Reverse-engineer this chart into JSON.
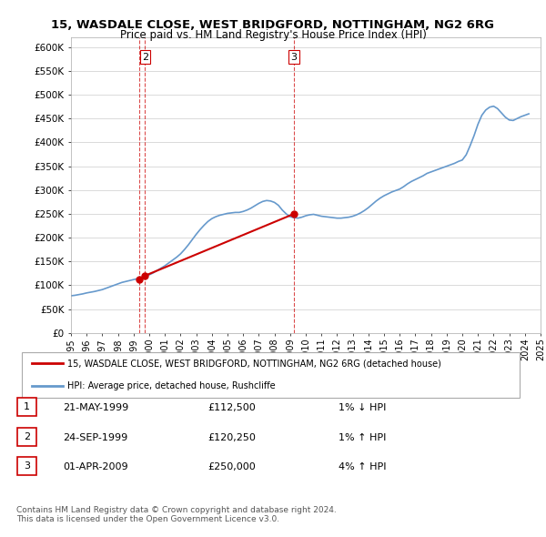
{
  "title1": "15, WASDALE CLOSE, WEST BRIDGFORD, NOTTINGHAM, NG2 6RG",
  "title2": "Price paid vs. HM Land Registry's House Price Index (HPI)",
  "ylabel_ticks": [
    "£0",
    "£50K",
    "£100K",
    "£150K",
    "£200K",
    "£250K",
    "£300K",
    "£350K",
    "£400K",
    "£450K",
    "£500K",
    "£550K",
    "£600K"
  ],
  "ytick_values": [
    0,
    50000,
    100000,
    150000,
    200000,
    250000,
    300000,
    350000,
    400000,
    450000,
    500000,
    550000,
    600000
  ],
  "ylim": [
    0,
    620000
  ],
  "legend_line1": "15, WASDALE CLOSE, WEST BRIDGFORD, NOTTINGHAM, NG2 6RG (detached house)",
  "legend_line2": "HPI: Average price, detached house, Rushcliffe",
  "transaction_labels": [
    {
      "num": "1",
      "date": "21-MAY-1999",
      "price": "£112,500",
      "hpi": "1% ↓ HPI"
    },
    {
      "num": "2",
      "date": "24-SEP-1999",
      "price": "£120,250",
      "hpi": "1% ↑ HPI"
    },
    {
      "num": "3",
      "date": "01-APR-2009",
      "price": "£250,000",
      "hpi": "4% ↑ HPI"
    }
  ],
  "footer": "Contains HM Land Registry data © Crown copyright and database right 2024.\nThis data is licensed under the Open Government Licence v3.0.",
  "sale_color": "#cc0000",
  "hpi_color": "#6699cc",
  "vline_color": "#cc0000",
  "bg_color": "#ffffff",
  "hpi_dates": [
    1995.0,
    1995.25,
    1995.5,
    1995.75,
    1996.0,
    1996.25,
    1996.5,
    1996.75,
    1997.0,
    1997.25,
    1997.5,
    1997.75,
    1998.0,
    1998.25,
    1998.5,
    1998.75,
    1999.0,
    1999.25,
    1999.5,
    1999.75,
    2000.0,
    2000.25,
    2000.5,
    2000.75,
    2001.0,
    2001.25,
    2001.5,
    2001.75,
    2002.0,
    2002.25,
    2002.5,
    2002.75,
    2003.0,
    2003.25,
    2003.5,
    2003.75,
    2004.0,
    2004.25,
    2004.5,
    2004.75,
    2005.0,
    2005.25,
    2005.5,
    2005.75,
    2006.0,
    2006.25,
    2006.5,
    2006.75,
    2007.0,
    2007.25,
    2007.5,
    2007.75,
    2008.0,
    2008.25,
    2008.5,
    2008.75,
    2009.0,
    2009.25,
    2009.5,
    2009.75,
    2010.0,
    2010.25,
    2010.5,
    2010.75,
    2011.0,
    2011.25,
    2011.5,
    2011.75,
    2012.0,
    2012.25,
    2012.5,
    2012.75,
    2013.0,
    2013.25,
    2013.5,
    2013.75,
    2014.0,
    2014.25,
    2014.5,
    2014.75,
    2015.0,
    2015.25,
    2015.5,
    2015.75,
    2016.0,
    2016.25,
    2016.5,
    2016.75,
    2017.0,
    2017.25,
    2017.5,
    2017.75,
    2018.0,
    2018.25,
    2018.5,
    2018.75,
    2019.0,
    2019.25,
    2019.5,
    2019.75,
    2020.0,
    2020.25,
    2020.5,
    2020.75,
    2021.0,
    2021.25,
    2021.5,
    2021.75,
    2022.0,
    2022.25,
    2022.5,
    2022.75,
    2023.0,
    2023.25,
    2023.5,
    2023.75,
    2024.0,
    2024.25
  ],
  "hpi_values": [
    78000,
    79000,
    80500,
    82000,
    84000,
    85500,
    87000,
    89000,
    91000,
    94000,
    97000,
    100000,
    103000,
    106000,
    108000,
    110000,
    112000,
    114000,
    117000,
    119000,
    122000,
    126000,
    131000,
    136000,
    141000,
    147000,
    153000,
    159000,
    166000,
    175000,
    185000,
    196000,
    207000,
    217000,
    226000,
    234000,
    240000,
    244000,
    247000,
    249000,
    251000,
    252000,
    253000,
    253000,
    255000,
    258000,
    262000,
    267000,
    272000,
    276000,
    278000,
    277000,
    274000,
    268000,
    258000,
    250000,
    244000,
    242000,
    241000,
    243000,
    246000,
    248000,
    249000,
    247000,
    245000,
    244000,
    243000,
    242000,
    241000,
    241000,
    242000,
    243000,
    245000,
    248000,
    252000,
    257000,
    263000,
    270000,
    277000,
    283000,
    288000,
    292000,
    296000,
    299000,
    302000,
    307000,
    313000,
    318000,
    322000,
    326000,
    330000,
    335000,
    338000,
    341000,
    344000,
    347000,
    350000,
    353000,
    356000,
    360000,
    363000,
    374000,
    393000,
    414000,
    438000,
    457000,
    468000,
    474000,
    476000,
    471000,
    462000,
    453000,
    447000,
    446000,
    450000,
    454000,
    457000,
    460000
  ],
  "sale_dates": [
    1999.38,
    1999.73,
    2009.25
  ],
  "sale_prices": [
    112500,
    120250,
    250000
  ],
  "sale_nums": [
    "1",
    "2",
    "3"
  ],
  "xlim_start": 1995.0,
  "xlim_end": 2025.0,
  "xtick_years": [
    1995,
    1996,
    1997,
    1998,
    1999,
    2000,
    2001,
    2002,
    2003,
    2004,
    2005,
    2006,
    2007,
    2008,
    2009,
    2010,
    2011,
    2012,
    2013,
    2014,
    2015,
    2016,
    2017,
    2018,
    2019,
    2020,
    2021,
    2022,
    2023,
    2024,
    2025
  ]
}
